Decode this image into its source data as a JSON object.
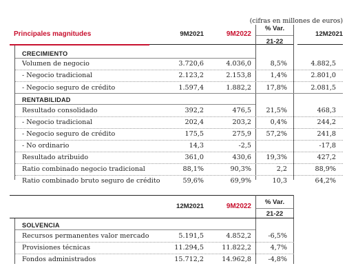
{
  "note": "(cifras en millones de euros)",
  "table1": {
    "header": {
      "title": "Principales magnitudes",
      "c1": "9M2021",
      "c2": "9M2022",
      "var_top": "% Var.",
      "var_bottom": "21-22",
      "c4": "12M2021"
    },
    "sections": [
      {
        "title": "CRECIMIENTO",
        "rows": [
          {
            "label": "Volumen de negocio",
            "v1": "3.720,6",
            "v2": "4.036,0",
            "var": "8,5%",
            "v4": "4.882,5"
          },
          {
            "label": "- Negocio tradicional",
            "v1": "2.123,2",
            "v2": "2.153,8",
            "var": "1,4%",
            "v4": "2.801,0"
          },
          {
            "label": "- Negocio seguro de crédito",
            "v1": "1.597,4",
            "v2": "1.882,2",
            "var": "17,8%",
            "v4": "2.081,5"
          }
        ]
      },
      {
        "title": "RENTABILIDAD",
        "rows": [
          {
            "label": "Resultado consolidado",
            "v1": "392,2",
            "v2": "476,5",
            "var": "21,5%",
            "v4": "468,3"
          },
          {
            "label": "- Negocio tradicional",
            "v1": "202,4",
            "v2": "203,2",
            "var": "0,4%",
            "v4": "244,2"
          },
          {
            "label": "- Negocio seguro de crédito",
            "v1": "175,5",
            "v2": "275,9",
            "var": "57,2%",
            "v4": "241,8"
          },
          {
            "label": "- No ordinario",
            "v1": "14,3",
            "v2": "-2,5",
            "var": "",
            "v4": "-17,8"
          },
          {
            "label": "Resultado atribuido",
            "v1": "361,0",
            "v2": "430,6",
            "var": "19,3%",
            "v4": "427,2"
          },
          {
            "label": "Ratio combinado negocio tradicional",
            "v1": "88,1%",
            "v2": "90,3%",
            "var": "2,2",
            "v4": "88,9%"
          },
          {
            "label": "Ratio combinado bruto seguro de crédito",
            "v1": "59,6%",
            "v2": "69,9%",
            "var": "10,3",
            "v4": "64,2%"
          }
        ]
      }
    ]
  },
  "table2": {
    "header": {
      "c1": "12M2021",
      "c2": "9M2022",
      "var_top": "% Var.",
      "var_bottom": "21-22"
    },
    "section_title": "SOLVENCIA",
    "rows": [
      {
        "label": "Recursos permanentes valor mercado",
        "v1": "5.191,5",
        "v2": "4.852,2",
        "var": "-6,5%"
      },
      {
        "label": "Provisiones técnicas",
        "v1": "11.294,5",
        "v2": "11.822,2",
        "var": "4,7%"
      },
      {
        "label": "Fondos administrados",
        "v1": "15.712,2",
        "v2": "14.962,8",
        "var": "-4,8%"
      }
    ]
  }
}
